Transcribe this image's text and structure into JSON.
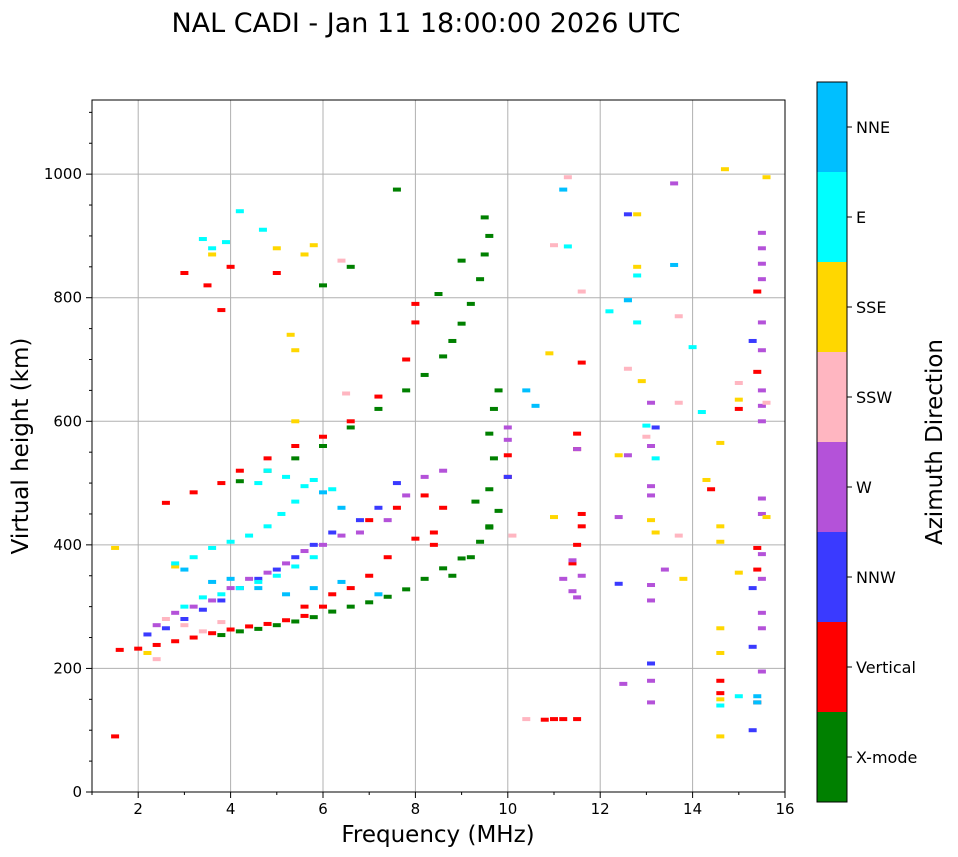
{
  "chart_data": {
    "type": "scatter",
    "title": "NAL CADI - Jan 11 18:00:00 2026 UTC",
    "xlabel": "Frequency (MHz)",
    "ylabel": "Virtual height (km)",
    "xlim": [
      1,
      16
    ],
    "ylim": [
      0,
      1120
    ],
    "xticks": [
      2,
      4,
      6,
      8,
      10,
      12,
      14,
      16
    ],
    "xtick_labels": [
      "2",
      "4",
      "6",
      "8",
      "10",
      "12",
      "14",
      "16"
    ],
    "yticks": [
      0,
      200,
      400,
      600,
      800,
      1000
    ],
    "ytick_labels": [
      "0",
      "200",
      "400",
      "600",
      "800",
      "1000"
    ],
    "grid": true,
    "colorbar": {
      "label": "Azimuth Direction",
      "categories": [
        "X-mode",
        "Vertical",
        "NNW",
        "W",
        "SSW",
        "SSE",
        "E",
        "NNE"
      ],
      "colors": [
        "#008000",
        "#ff0000",
        "#3a3aff",
        "#b452d9",
        "#ffb6c1",
        "#ffd700",
        "#00ffff",
        "#00bfff"
      ]
    },
    "series": [
      {
        "name": "X-mode",
        "color": "#008000",
        "trace": "x-mode main traces",
        "points": [
          [
            3.8,
            254
          ],
          [
            4.2,
            260
          ],
          [
            4.6,
            264
          ],
          [
            5.0,
            270
          ],
          [
            5.4,
            276
          ],
          [
            5.8,
            283
          ],
          [
            6.2,
            292
          ],
          [
            6.6,
            300
          ],
          [
            7.0,
            307
          ],
          [
            7.4,
            316
          ],
          [
            7.8,
            328
          ],
          [
            8.2,
            345
          ],
          [
            8.6,
            362
          ],
          [
            9.0,
            378
          ],
          [
            9.4,
            405
          ],
          [
            9.6,
            428
          ],
          [
            4.2,
            503
          ],
          [
            4.8,
            520
          ],
          [
            5.4,
            540
          ],
          [
            6.0,
            560
          ],
          [
            6.6,
            590
          ],
          [
            7.2,
            620
          ],
          [
            7.8,
            650
          ],
          [
            8.2,
            675
          ],
          [
            8.6,
            705
          ],
          [
            8.8,
            730
          ],
          [
            9.0,
            758
          ],
          [
            9.2,
            790
          ],
          [
            9.4,
            830
          ],
          [
            9.5,
            870
          ],
          [
            9.6,
            900
          ],
          [
            8.8,
            350
          ],
          [
            9.2,
            380
          ],
          [
            9.6,
            430
          ],
          [
            9.8,
            455
          ],
          [
            9.3,
            470
          ],
          [
            9.6,
            490
          ],
          [
            9.7,
            540
          ],
          [
            9.6,
            580
          ],
          [
            9.7,
            620
          ],
          [
            9.8,
            650
          ],
          [
            8.5,
            806
          ],
          [
            9.0,
            860
          ],
          [
            6.0,
            820
          ],
          [
            6.6,
            850
          ],
          [
            7.6,
            975
          ],
          [
            9.5,
            930
          ]
        ]
      },
      {
        "name": "Vertical",
        "color": "#ff0000",
        "trace": "o-mode traces",
        "points": [
          [
            1.6,
            230
          ],
          [
            2.0,
            232
          ],
          [
            2.4,
            238
          ],
          [
            2.8,
            244
          ],
          [
            3.2,
            250
          ],
          [
            3.6,
            257
          ],
          [
            4.0,
            263
          ],
          [
            4.4,
            268
          ],
          [
            4.8,
            272
          ],
          [
            5.2,
            278
          ],
          [
            5.6,
            285
          ],
          [
            6.0,
            300
          ],
          [
            2.6,
            468
          ],
          [
            3.2,
            485
          ],
          [
            3.8,
            500
          ],
          [
            4.2,
            520
          ],
          [
            4.8,
            540
          ],
          [
            5.4,
            560
          ],
          [
            6.0,
            575
          ],
          [
            6.6,
            600
          ],
          [
            7.2,
            640
          ],
          [
            7.8,
            700
          ],
          [
            8.0,
            760
          ],
          [
            8.0,
            790
          ],
          [
            7.0,
            440
          ],
          [
            7.6,
            460
          ],
          [
            8.2,
            480
          ],
          [
            8.6,
            460
          ],
          [
            8.4,
            420
          ],
          [
            8.4,
            400
          ],
          [
            8.0,
            410
          ],
          [
            7.4,
            380
          ],
          [
            7.0,
            350
          ],
          [
            6.6,
            330
          ],
          [
            6.2,
            320
          ],
          [
            5.6,
            300
          ],
          [
            3.0,
            840
          ],
          [
            3.5,
            820
          ],
          [
            3.8,
            780
          ],
          [
            4.0,
            850
          ],
          [
            5.0,
            840
          ],
          [
            11.0,
            118
          ],
          [
            10.8,
            117
          ],
          [
            11.2,
            118
          ],
          [
            11.5,
            118
          ],
          [
            11.6,
            430
          ],
          [
            11.6,
            450
          ],
          [
            11.5,
            400
          ],
          [
            11.4,
            370
          ],
          [
            14.4,
            490
          ],
          [
            14.6,
            180
          ],
          [
            14.6,
            160
          ],
          [
            15.0,
            620
          ],
          [
            15.4,
            810
          ],
          [
            15.4,
            680
          ],
          [
            15.4,
            395
          ],
          [
            15.4,
            360
          ],
          [
            15.4,
            145
          ],
          [
            1.5,
            90
          ],
          [
            11.6,
            695
          ],
          [
            11.5,
            580
          ],
          [
            11.5,
            555
          ],
          [
            10.0,
            545
          ],
          [
            10.0,
            510
          ]
        ]
      },
      {
        "name": "NNW",
        "color": "#3a3aff",
        "trace": "scattered echoes",
        "points": [
          [
            2.2,
            255
          ],
          [
            2.6,
            265
          ],
          [
            3.0,
            280
          ],
          [
            3.4,
            295
          ],
          [
            3.8,
            310
          ],
          [
            4.2,
            330
          ],
          [
            4.6,
            345
          ],
          [
            5.0,
            360
          ],
          [
            5.4,
            380
          ],
          [
            5.8,
            400
          ],
          [
            6.2,
            420
          ],
          [
            6.8,
            440
          ],
          [
            7.2,
            460
          ],
          [
            12.6,
            935
          ],
          [
            15.3,
            730
          ],
          [
            15.3,
            330
          ],
          [
            15.3,
            235
          ],
          [
            15.3,
            100
          ],
          [
            13.1,
            208
          ],
          [
            12.4,
            337
          ],
          [
            13.2,
            590
          ],
          [
            10.0,
            510
          ],
          [
            7.6,
            500
          ]
        ]
      },
      {
        "name": "W",
        "color": "#b452d9",
        "trace": "scattered echoes",
        "points": [
          [
            2.4,
            270
          ],
          [
            2.8,
            290
          ],
          [
            3.2,
            300
          ],
          [
            3.6,
            310
          ],
          [
            4.0,
            330
          ],
          [
            4.4,
            345
          ],
          [
            4.8,
            355
          ],
          [
            5.2,
            370
          ],
          [
            5.6,
            390
          ],
          [
            6.0,
            400
          ],
          [
            6.4,
            415
          ],
          [
            6.8,
            420
          ],
          [
            7.4,
            440
          ],
          [
            7.8,
            480
          ],
          [
            8.2,
            510
          ],
          [
            8.6,
            520
          ],
          [
            10.0,
            590
          ],
          [
            10.0,
            570
          ],
          [
            11.5,
            555
          ],
          [
            11.6,
            350
          ],
          [
            11.5,
            315
          ],
          [
            12.4,
            445
          ],
          [
            12.6,
            545
          ],
          [
            13.1,
            630
          ],
          [
            13.1,
            560
          ],
          [
            13.1,
            495
          ],
          [
            13.1,
            480
          ],
          [
            13.1,
            335
          ],
          [
            13.1,
            310
          ],
          [
            13.1,
            180
          ],
          [
            13.1,
            145
          ],
          [
            13.4,
            360
          ],
          [
            13.6,
            985
          ],
          [
            15.5,
            905
          ],
          [
            15.5,
            880
          ],
          [
            15.5,
            855
          ],
          [
            15.5,
            830
          ],
          [
            15.5,
            760
          ],
          [
            15.5,
            715
          ],
          [
            15.5,
            650
          ],
          [
            15.5,
            625
          ],
          [
            15.5,
            600
          ],
          [
            15.5,
            475
          ],
          [
            15.5,
            450
          ],
          [
            15.5,
            385
          ],
          [
            15.5,
            345
          ],
          [
            15.5,
            290
          ],
          [
            15.5,
            265
          ],
          [
            15.5,
            195
          ],
          [
            12.5,
            175
          ],
          [
            11.4,
            375
          ],
          [
            11.4,
            325
          ],
          [
            11.2,
            345
          ]
        ]
      },
      {
        "name": "SSW",
        "color": "#ffb6c1",
        "trace": "scattered echoes",
        "points": [
          [
            2.4,
            215
          ],
          [
            2.6,
            280
          ],
          [
            3.0,
            270
          ],
          [
            3.4,
            260
          ],
          [
            3.8,
            275
          ],
          [
            6.4,
            860
          ],
          [
            6.5,
            645
          ],
          [
            10.4,
            118
          ],
          [
            11.0,
            885
          ],
          [
            11.3,
            995
          ],
          [
            11.6,
            810
          ],
          [
            12.6,
            685
          ],
          [
            13.0,
            575
          ],
          [
            13.7,
            770
          ],
          [
            13.7,
            630
          ],
          [
            13.7,
            415
          ],
          [
            15.0,
            662
          ],
          [
            15.6,
            630
          ],
          [
            10.1,
            415
          ]
        ]
      },
      {
        "name": "SSE",
        "color": "#ffd700",
        "trace": "scattered echoes",
        "points": [
          [
            1.5,
            395
          ],
          [
            2.2,
            225
          ],
          [
            2.8,
            365
          ],
          [
            3.6,
            870
          ],
          [
            5.0,
            880
          ],
          [
            5.3,
            740
          ],
          [
            5.4,
            715
          ],
          [
            5.4,
            600
          ],
          [
            5.6,
            870
          ],
          [
            5.8,
            885
          ],
          [
            10.9,
            710
          ],
          [
            11.0,
            445
          ],
          [
            12.4,
            545
          ],
          [
            12.8,
            935
          ],
          [
            12.8,
            850
          ],
          [
            12.9,
            665
          ],
          [
            13.1,
            440
          ],
          [
            13.2,
            420
          ],
          [
            13.8,
            345
          ],
          [
            14.3,
            505
          ],
          [
            14.6,
            565
          ],
          [
            14.6,
            430
          ],
          [
            14.6,
            405
          ],
          [
            14.6,
            265
          ],
          [
            14.6,
            225
          ],
          [
            14.6,
            150
          ],
          [
            14.6,
            90
          ],
          [
            14.7,
            1008
          ],
          [
            15.0,
            635
          ],
          [
            15.0,
            355
          ],
          [
            15.6,
            995
          ],
          [
            15.6,
            445
          ]
        ]
      },
      {
        "name": "E",
        "color": "#00ffff",
        "trace": "spread echoes",
        "points": [
          [
            2.8,
            370
          ],
          [
            3.2,
            380
          ],
          [
            3.6,
            395
          ],
          [
            4.0,
            405
          ],
          [
            4.4,
            415
          ],
          [
            4.8,
            430
          ],
          [
            5.1,
            450
          ],
          [
            5.4,
            470
          ],
          [
            5.6,
            495
          ],
          [
            5.2,
            510
          ],
          [
            4.8,
            520
          ],
          [
            4.6,
            500
          ],
          [
            3.0,
            300
          ],
          [
            3.4,
            315
          ],
          [
            3.8,
            320
          ],
          [
            4.2,
            330
          ],
          [
            4.6,
            340
          ],
          [
            5.0,
            350
          ],
          [
            5.4,
            365
          ],
          [
            5.8,
            380
          ],
          [
            3.4,
            895
          ],
          [
            3.6,
            880
          ],
          [
            3.9,
            890
          ],
          [
            4.2,
            940
          ],
          [
            4.7,
            910
          ],
          [
            5.8,
            505
          ],
          [
            6.2,
            490
          ],
          [
            11.3,
            883
          ],
          [
            12.2,
            778
          ],
          [
            12.8,
            760
          ],
          [
            12.8,
            836
          ],
          [
            12.6,
            796
          ],
          [
            13.0,
            593
          ],
          [
            13.2,
            540
          ],
          [
            14.0,
            720
          ],
          [
            14.2,
            615
          ],
          [
            14.6,
            140
          ],
          [
            15.0,
            155
          ]
        ]
      },
      {
        "name": "NNE",
        "color": "#00bfff",
        "trace": "scattered echoes",
        "points": [
          [
            3.0,
            360
          ],
          [
            3.6,
            340
          ],
          [
            4.0,
            345
          ],
          [
            4.6,
            330
          ],
          [
            5.2,
            320
          ],
          [
            5.8,
            330
          ],
          [
            6.4,
            340
          ],
          [
            7.2,
            320
          ],
          [
            6.0,
            485
          ],
          [
            6.4,
            460
          ],
          [
            10.4,
            650
          ],
          [
            10.6,
            625
          ],
          [
            11.2,
            975
          ],
          [
            12.6,
            796
          ],
          [
            13.6,
            853
          ],
          [
            15.4,
            155
          ],
          [
            15.4,
            145
          ]
        ]
      }
    ]
  }
}
